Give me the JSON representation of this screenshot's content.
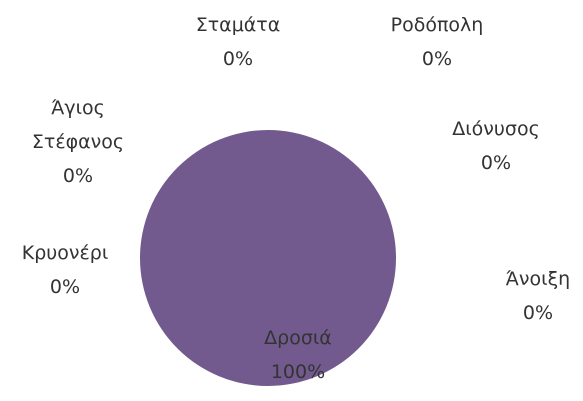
{
  "chart_data": {
    "type": "pie",
    "categories": [
      "Δροσιά",
      "Άνοιξη",
      "Διόνυσος",
      "Ροδόπολη",
      "Σταμάτα",
      "Άγιος Στέφανος",
      "Κρυονέρι"
    ],
    "values": [
      100,
      0,
      0,
      0,
      0,
      0,
      0
    ],
    "value_labels": [
      "100%",
      "0%",
      "0%",
      "0%",
      "0%",
      "0%",
      "0%"
    ],
    "color": "#725a8f"
  }
}
